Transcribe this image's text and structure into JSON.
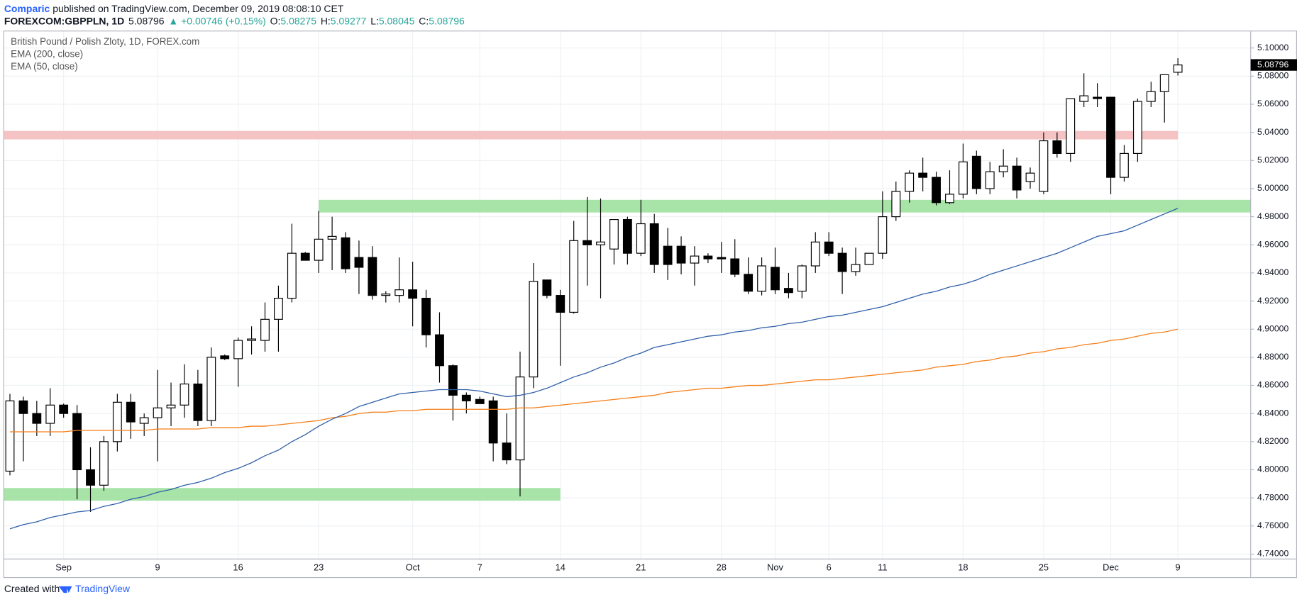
{
  "header": {
    "author": "Comparic",
    "published": " published on TradingView.com, December 09, 2019 08:08:10 CET",
    "symbol": "FOREXCOM:GBPPLN, 1D",
    "price": "5.08796",
    "change": "▲ +0.00746 (+0.15%)",
    "ohlc": [
      {
        "key": "O:",
        "value": "5.08275"
      },
      {
        "key": "H:",
        "value": "5.09277"
      },
      {
        "key": "L:",
        "value": "5.08045"
      },
      {
        "key": "C:",
        "value": "5.08796"
      }
    ]
  },
  "footer": {
    "text": "Created with",
    "brand": "TradingView"
  },
  "chart_data": {
    "type": "candlestick",
    "legend_title": "British Pound / Polish Zloty, 1D, FOREX.com",
    "categories": [
      null,
      null,
      null,
      null,
      "Sep",
      null,
      null,
      null,
      null,
      null,
      null,
      "9",
      null,
      null,
      null,
      null,
      null,
      "16",
      null,
      null,
      null,
      null,
      null,
      "23",
      null,
      null,
      null,
      null,
      null,
      null,
      "Oct",
      null,
      null,
      null,
      null,
      "7",
      null,
      null,
      null,
      null,
      null,
      "14",
      null,
      null,
      null,
      null,
      null,
      "21",
      null,
      null,
      null,
      null,
      null,
      "28",
      null,
      null,
      null,
      "Nov",
      null,
      null,
      null,
      "6",
      null,
      null,
      null,
      "11",
      null,
      null,
      null,
      null,
      null,
      "18",
      null,
      null,
      null,
      null,
      null,
      "25",
      null,
      null,
      null,
      null,
      "Dec",
      null,
      null,
      null,
      null,
      "9"
    ],
    "open": [
      4.799,
      4.849,
      4.84,
      4.833,
      4.846,
      4.84,
      4.8,
      4.789,
      4.82,
      4.848,
      4.833,
      4.837,
      4.844,
      4.846,
      4.861,
      4.835,
      4.881,
      4.879,
      4.892,
      4.892,
      4.907,
      4.922,
      4.954,
      4.949,
      4.964,
      4.965,
      4.951,
      4.951,
      4.924,
      4.924,
      4.928,
      4.922,
      4.896,
      4.874,
      4.853,
      4.85,
      4.849,
      4.819,
      4.807,
      4.866,
      4.935,
      4.924,
      4.912,
      4.963,
      4.96,
      4.957,
      4.978,
      4.954,
      4.975,
      4.959,
      4.959,
      4.947,
      4.952,
      4.951,
      4.95,
      4.939,
      4.927,
      4.944,
      4.929,
      4.927,
      4.945,
      4.962,
      4.954,
      4.941,
      4.946,
      4.954,
      4.98,
      4.998,
      5.011,
      5.008,
      4.99,
      4.996,
      5.023,
      5.0,
      5.012,
      5.016,
      5.005,
      4.998,
      5.034,
      5.025,
      5.062,
      5.065,
      5.065,
      5.008,
      5.025,
      5.062,
      5.069,
      5.08275
    ],
    "high": [
      4.854,
      4.852,
      4.849,
      4.858,
      4.847,
      4.846,
      4.816,
      4.824,
      4.854,
      4.854,
      4.84,
      4.871,
      4.862,
      4.875,
      4.871,
      4.887,
      4.882,
      4.894,
      4.902,
      4.919,
      4.931,
      4.975,
      4.955,
      4.984,
      4.98,
      4.969,
      4.963,
      4.959,
      4.927,
      4.951,
      4.948,
      4.928,
      4.912,
      4.875,
      4.855,
      4.852,
      4.852,
      4.84,
      4.884,
      4.947,
      4.935,
      4.928,
      4.977,
      4.994,
      4.993,
      4.978,
      4.98,
      4.992,
      4.982,
      4.972,
      4.966,
      4.959,
      4.954,
      4.962,
      4.964,
      4.951,
      4.951,
      4.958,
      4.94,
      4.946,
      4.969,
      4.969,
      4.958,
      4.958,
      4.954,
      4.998,
      5.005,
      5.013,
      5.022,
      5.012,
      5.013,
      5.032,
      5.027,
      5.019,
      5.028,
      5.022,
      5.015,
      5.04,
      5.04,
      5.064,
      5.082,
      5.075,
      5.065,
      5.031,
      5.064,
      5.076,
      5.081,
      5.09277
    ],
    "low": [
      4.796,
      4.806,
      4.824,
      4.824,
      4.837,
      4.779,
      4.77,
      4.785,
      4.813,
      4.822,
      4.824,
      4.806,
      4.831,
      4.837,
      4.831,
      4.831,
      4.878,
      4.859,
      4.882,
      4.884,
      4.884,
      4.919,
      4.949,
      4.94,
      4.942,
      4.94,
      4.925,
      4.921,
      4.919,
      4.919,
      4.902,
      4.887,
      4.862,
      4.835,
      4.84,
      4.847,
      4.806,
      4.804,
      4.781,
      4.858,
      4.922,
      4.874,
      4.911,
      4.931,
      4.922,
      4.946,
      4.946,
      4.952,
      4.94,
      4.935,
      4.939,
      4.931,
      4.947,
      4.94,
      4.937,
      4.925,
      4.924,
      4.925,
      4.922,
      4.922,
      4.94,
      4.952,
      4.925,
      4.938,
      4.946,
      4.95,
      4.977,
      4.99,
      4.998,
      4.988,
      4.989,
      4.993,
      4.996,
      4.996,
      5.008,
      4.993,
      5.0,
      4.996,
      5.022,
      5.019,
      5.058,
      5.058,
      4.996,
      5.005,
      5.019,
      5.058,
      5.047,
      5.08045
    ],
    "close": [
      4.849,
      4.84,
      4.833,
      4.846,
      4.84,
      4.8,
      4.789,
      4.82,
      4.848,
      4.834,
      4.837,
      4.844,
      4.846,
      4.861,
      4.835,
      4.88,
      4.879,
      4.892,
      4.893,
      4.907,
      4.922,
      4.954,
      4.949,
      4.964,
      4.966,
      4.943,
      4.944,
      4.924,
      4.925,
      4.928,
      4.922,
      4.896,
      4.874,
      4.853,
      4.849,
      4.847,
      4.819,
      4.807,
      4.866,
      4.934,
      4.924,
      4.912,
      4.963,
      4.96,
      4.962,
      4.978,
      4.954,
      4.975,
      4.946,
      4.946,
      4.947,
      4.952,
      4.95,
      4.95,
      4.939,
      4.927,
      4.945,
      4.928,
      4.926,
      4.945,
      4.962,
      4.954,
      4.941,
      4.946,
      4.954,
      4.98,
      4.998,
      5.011,
      5.008,
      4.99,
      4.996,
      5.019,
      5.0,
      5.012,
      5.016,
      4.999,
      5.011,
      5.034,
      5.025,
      5.064,
      5.066,
      5.064,
      5.008,
      5.025,
      5.062,
      5.069,
      5.081,
      5.08796
    ],
    "up_color": "#ffffff",
    "down_color": "#000000",
    "series": [
      {
        "name": "EMA (200, close)",
        "color": "#f57f17",
        "values": [
          4.827,
          4.827,
          4.827,
          4.827,
          4.827,
          4.828,
          4.828,
          4.828,
          4.828,
          4.828,
          4.828,
          4.829,
          4.829,
          4.829,
          4.829,
          4.83,
          4.83,
          4.83,
          4.831,
          4.831,
          4.832,
          4.833,
          4.834,
          4.835,
          4.837,
          4.838,
          4.84,
          4.841,
          4.841,
          4.842,
          4.842,
          4.843,
          4.843,
          4.843,
          4.843,
          4.843,
          4.843,
          4.843,
          4.844,
          4.844,
          4.845,
          4.846,
          4.847,
          4.848,
          4.849,
          4.85,
          4.851,
          4.852,
          4.853,
          4.855,
          4.856,
          4.857,
          4.858,
          4.858,
          4.859,
          4.86,
          4.86,
          4.861,
          4.862,
          4.863,
          4.864,
          4.864,
          4.865,
          4.866,
          4.867,
          4.868,
          4.869,
          4.87,
          4.871,
          4.873,
          4.874,
          4.875,
          4.877,
          4.878,
          4.88,
          4.881,
          4.883,
          4.884,
          4.886,
          4.887,
          4.889,
          4.89,
          4.892,
          4.893,
          4.895,
          4.897,
          4.898,
          4.9
        ]
      },
      {
        "name": "EMA (50, close)",
        "color": "#2f5fa8",
        "values": [
          4.758,
          4.761,
          4.763,
          4.766,
          4.768,
          4.77,
          4.771,
          4.774,
          4.776,
          4.779,
          4.781,
          4.784,
          4.786,
          4.789,
          4.791,
          4.794,
          4.798,
          4.801,
          4.805,
          4.81,
          4.814,
          4.82,
          4.825,
          4.831,
          4.836,
          4.84,
          4.845,
          4.848,
          4.851,
          4.854,
          4.855,
          4.856,
          4.857,
          4.857,
          4.857,
          4.856,
          4.854,
          4.852,
          4.853,
          4.855,
          4.858,
          4.862,
          4.866,
          4.869,
          4.873,
          4.876,
          4.88,
          4.883,
          4.887,
          4.889,
          4.891,
          4.893,
          4.895,
          4.896,
          4.898,
          4.899,
          4.901,
          4.902,
          4.904,
          4.905,
          4.907,
          4.909,
          4.91,
          4.912,
          4.914,
          4.916,
          4.919,
          4.922,
          4.925,
          4.927,
          4.93,
          4.932,
          4.935,
          4.939,
          4.942,
          4.945,
          4.948,
          4.951,
          4.954,
          4.958,
          4.962,
          4.966,
          4.968,
          4.97,
          4.974,
          4.978,
          4.982,
          4.986
        ]
      }
    ],
    "zones": [
      {
        "range": [
          5.035,
          5.041
        ],
        "end": 87,
        "color": "#f4bcbc"
      },
      {
        "range": [
          4.983,
          4.992
        ],
        "start": 23,
        "color": "#9fe09f"
      },
      {
        "range": [
          4.778,
          4.787
        ],
        "end": 41,
        "color": "#9fe09f"
      }
    ],
    "last_label": {
      "value": 5.08796,
      "label": "5.08796"
    },
    "ylim": [
      4.7365,
      5.1118
    ],
    "yticks": [
      {
        "value": 4.74,
        "label": "4.74000"
      },
      {
        "value": 4.76,
        "label": "4.76000"
      },
      {
        "value": 4.78,
        "label": "4.78000"
      },
      {
        "value": 4.8,
        "label": "4.80000"
      },
      {
        "value": 4.82,
        "label": "4.82000"
      },
      {
        "value": 4.84,
        "label": "4.84000"
      },
      {
        "value": 4.86,
        "label": "4.86000"
      },
      {
        "value": 4.88,
        "label": "4.88000"
      },
      {
        "value": 4.9,
        "label": "4.90000"
      },
      {
        "value": 4.92,
        "label": "4.92000"
      },
      {
        "value": 4.94,
        "label": "4.94000"
      },
      {
        "value": 4.96,
        "label": "4.96000"
      },
      {
        "value": 4.98,
        "label": "4.98000"
      },
      {
        "value": 5.0,
        "label": "5.00000"
      },
      {
        "value": 5.02,
        "label": "5.02000"
      },
      {
        "value": 5.04,
        "label": "5.04000"
      },
      {
        "value": 5.06,
        "label": "5.06000"
      },
      {
        "value": 5.08,
        "label": "5.08000"
      },
      {
        "value": 5.1,
        "label": "5.10000"
      }
    ],
    "grid": true
  }
}
